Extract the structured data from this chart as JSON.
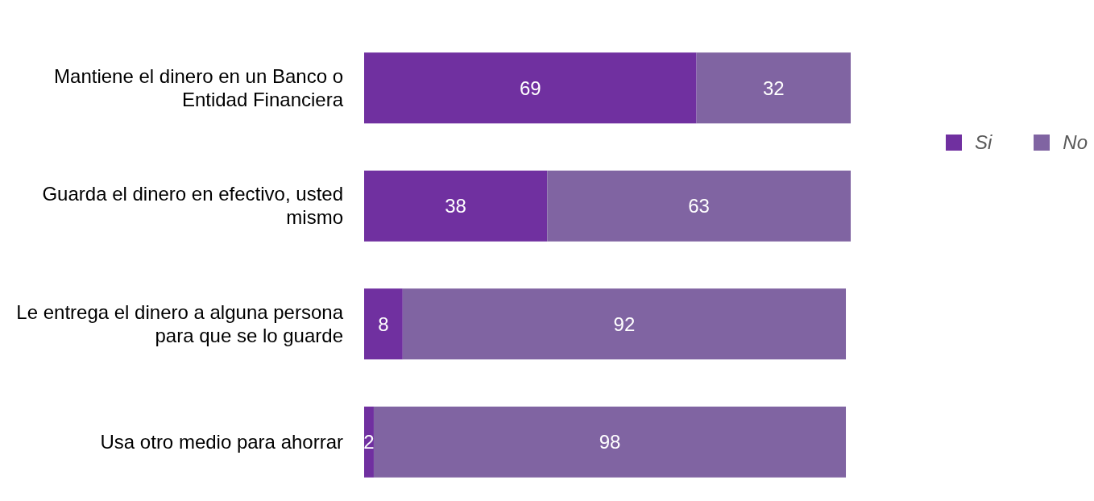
{
  "chart_data": {
    "type": "bar",
    "orientation": "horizontal",
    "stacked": true,
    "data_labels": true,
    "legend": "top right",
    "grid": false,
    "categories": [
      "Mantiene el dinero en un Banco o Entidad Financiera",
      "Guarda el dinero en efectivo, usted mismo",
      "Le entrega el dinero a alguna persona para que se lo guarde",
      "Usa otro medio para ahorrar"
    ],
    "series": [
      {
        "name": "Si",
        "color": "#7030a0",
        "values": [
          69,
          38,
          8,
          2
        ]
      },
      {
        "name": "No",
        "color": "#8064a2",
        "values": [
          32,
          63,
          92,
          98
        ]
      }
    ]
  }
}
